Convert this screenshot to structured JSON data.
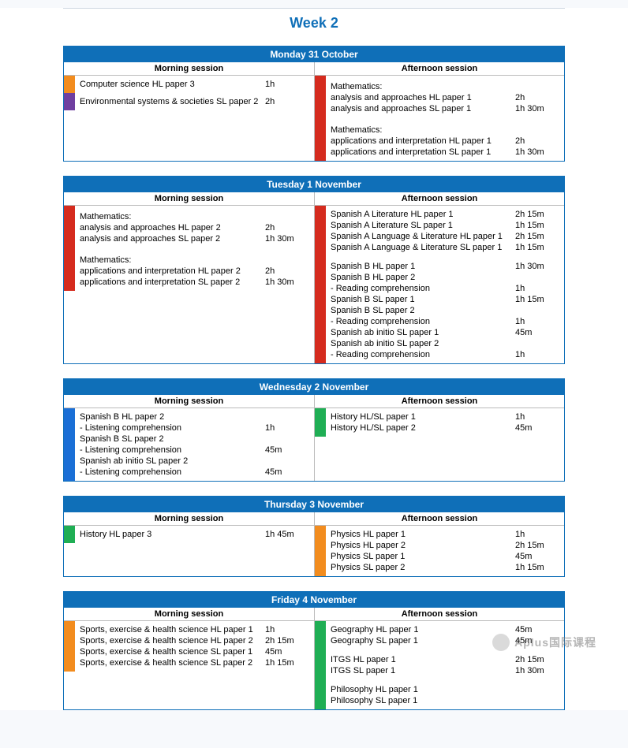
{
  "title": "Week 2",
  "colors": {
    "header_bg": "#0f6fb8",
    "header_fg": "#ffffff",
    "orange": "#f28c1e",
    "purple": "#6f3fa0",
    "red": "#d52b1e",
    "blue": "#1a6fd6",
    "green": "#1fae54"
  },
  "session_labels": {
    "morning": "Morning session",
    "afternoon": "Afternoon session"
  },
  "watermark": "Aplus国际课程",
  "days": [
    {
      "header": "Monday 31 October",
      "morning": {
        "blocks": [
          {
            "color": "orange",
            "items": [
              {
                "label": "Computer science HL paper 3",
                "time": "1h"
              }
            ]
          },
          {
            "color": "purple",
            "items": [
              {
                "label": "Environmental systems & societies SL paper 2",
                "time": "2h"
              }
            ]
          }
        ]
      },
      "afternoon": {
        "blocks": [
          {
            "color": "red",
            "items": [
              {
                "heading": "Mathematics:"
              },
              {
                "label": "analysis and approaches HL paper 1",
                "time": "2h"
              },
              {
                "label": "analysis and approaches SL paper 1",
                "time": "1h 30m"
              },
              {
                "spacer": true
              },
              {
                "heading": "Mathematics:"
              },
              {
                "label": "applications and interpretation HL paper 1",
                "time": "2h"
              },
              {
                "label": "applications and interpretation SL paper 1",
                "time": "1h 30m"
              }
            ]
          }
        ]
      }
    },
    {
      "header": "Tuesday 1 November",
      "morning": {
        "blocks": [
          {
            "color": "red",
            "items": [
              {
                "heading": "Mathematics:"
              },
              {
                "label": "analysis and approaches HL paper 2",
                "time": "2h"
              },
              {
                "label": "analysis and approaches SL paper 2",
                "time": "1h 30m"
              },
              {
                "spacer": true
              },
              {
                "heading": "Mathematics:"
              },
              {
                "label": "applications and interpretation HL paper 2",
                "time": "2h"
              },
              {
                "label": "applications and interpretation SL paper 2",
                "time": "1h 30m"
              }
            ]
          }
        ]
      },
      "afternoon": {
        "blocks": [
          {
            "color": "red",
            "items": [
              {
                "label": "Spanish A Literature HL paper 1",
                "time": "2h 15m"
              },
              {
                "label": "Spanish A Literature SL paper 1",
                "time": "1h 15m"
              },
              {
                "label": "Spanish A Language & Literature HL paper 1",
                "time": "2h 15m"
              },
              {
                "label": "Spanish A Language & Literature SL paper 1",
                "time": "1h 15m"
              },
              {
                "spacer": true
              },
              {
                "label": "Spanish B HL paper 1",
                "time": "1h 30m"
              },
              {
                "label": "Spanish B HL paper 2",
                "time": ""
              },
              {
                "label": "- Reading comprehension",
                "time": "1h"
              },
              {
                "label": "Spanish B SL paper 1",
                "time": "1h 15m"
              },
              {
                "label": "Spanish B SL paper 2",
                "time": ""
              },
              {
                "label": "- Reading comprehension",
                "time": "1h"
              },
              {
                "label": "Spanish ab initio SL paper 1",
                "time": "45m"
              },
              {
                "label": "Spanish ab initio SL paper 2",
                "time": ""
              },
              {
                "label": "- Reading comprehension",
                "time": "1h"
              }
            ]
          }
        ]
      }
    },
    {
      "header": "Wednesday 2 November",
      "morning": {
        "blocks": [
          {
            "color": "blue",
            "items": [
              {
                "label": "Spanish B HL paper 2",
                "time": ""
              },
              {
                "label": "- Listening comprehension",
                "time": "1h"
              },
              {
                "label": "Spanish B SL paper 2",
                "time": ""
              },
              {
                "label": "- Listening comprehension",
                "time": "45m"
              },
              {
                "label": "Spanish ab initio SL paper 2",
                "time": ""
              },
              {
                "label": "- Listening comprehension",
                "time": "45m"
              }
            ]
          }
        ]
      },
      "afternoon": {
        "blocks": [
          {
            "color": "green",
            "items": [
              {
                "label": "History HL/SL paper 1",
                "time": "1h"
              },
              {
                "label": "History HL/SL paper 2",
                "time": "45m"
              }
            ]
          }
        ]
      }
    },
    {
      "header": "Thursday 3 November",
      "morning": {
        "blocks": [
          {
            "color": "green",
            "items": [
              {
                "label": "History HL paper 3",
                "time": "1h 45m"
              }
            ]
          }
        ]
      },
      "afternoon": {
        "blocks": [
          {
            "color": "orange",
            "items": [
              {
                "label": "Physics HL paper 1",
                "time": "1h"
              },
              {
                "label": "Physics HL paper 2",
                "time": "2h 15m"
              },
              {
                "label": "Physics SL paper 1",
                "time": "45m"
              },
              {
                "label": "Physics SL paper 2",
                "time": "1h 15m"
              }
            ]
          }
        ]
      }
    },
    {
      "header": "Friday 4 November",
      "morning": {
        "blocks": [
          {
            "color": "orange",
            "items": [
              {
                "label": "Sports, exercise & health science HL paper 1",
                "time": "1h"
              },
              {
                "label": "Sports, exercise & health science HL paper 2",
                "time": "2h 15m"
              },
              {
                "label": "Sports, exercise & health science SL paper 1",
                "time": "45m"
              },
              {
                "label": "Sports, exercise & health science SL paper 2",
                "time": "1h 15m"
              }
            ]
          }
        ]
      },
      "afternoon": {
        "blocks": [
          {
            "color": "green",
            "items": [
              {
                "label": "Geography HL paper 1",
                "time": "45m"
              },
              {
                "label": "Geography SL paper 1",
                "time": "45m"
              },
              {
                "spacer": true
              },
              {
                "label": "ITGS HL paper 1",
                "time": "2h 15m"
              },
              {
                "label": "ITGS SL paper 1",
                "time": "1h 30m"
              },
              {
                "spacer": true
              },
              {
                "label": "Philosophy HL paper 1",
                "time": ""
              },
              {
                "label": "Philosophy SL paper 1",
                "time": ""
              }
            ]
          }
        ]
      }
    }
  ]
}
